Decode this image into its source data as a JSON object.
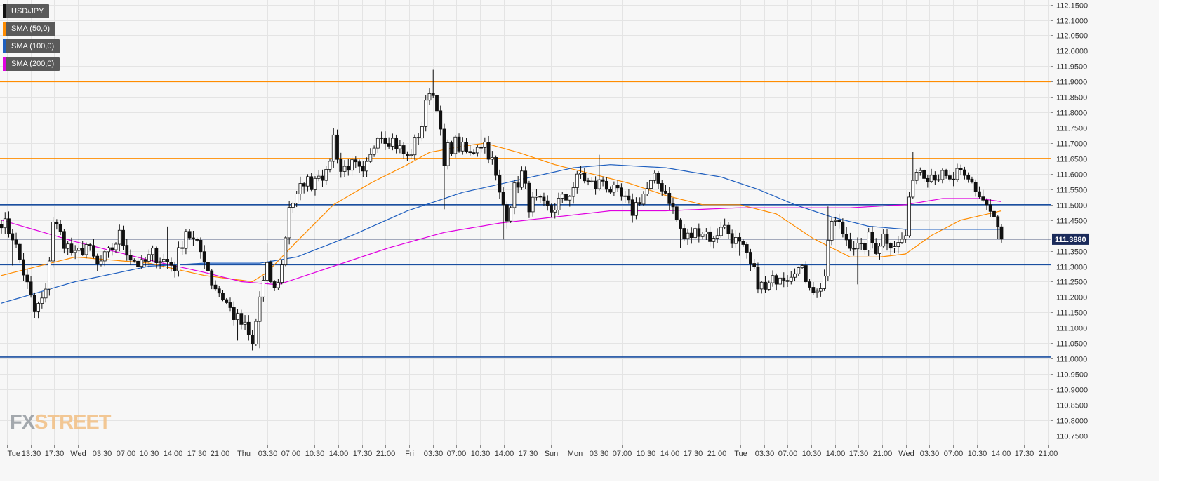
{
  "legend": [
    {
      "label": "USD/JPY",
      "color": "#111111"
    },
    {
      "label": "SMA (50,0)",
      "color": "#ff8c00"
    },
    {
      "label": "SMA (100,0)",
      "color": "#1f5fbf"
    },
    {
      "label": "SMA (200,0)",
      "color": "#e000e0"
    }
  ],
  "logo": {
    "fx": "FX",
    "street": "STREET"
  },
  "price_badge": "111.3880",
  "chart_data": {
    "type": "candlestick",
    "symbol": "USD/JPY",
    "ylim": [
      110.72,
      112.165
    ],
    "y_ticks": [
      "112.1500",
      "112.1000",
      "112.0500",
      "112.0000",
      "111.9500",
      "111.9000",
      "111.8500",
      "111.8000",
      "111.7500",
      "111.7000",
      "111.6500",
      "111.6000",
      "111.5500",
      "111.5000",
      "111.4500",
      "111.4000",
      "111.3500",
      "111.3000",
      "111.2500",
      "111.2000",
      "111.1500",
      "111.1000",
      "111.0500",
      "111.0000",
      "110.9500",
      "110.9000",
      "110.8500",
      "110.8000",
      "110.7500"
    ],
    "x_ticks": [
      "Tue",
      "13:30",
      "17:30",
      "Wed",
      "03:30",
      "07:00",
      "10:30",
      "14:00",
      "17:30",
      "21:00",
      "Thu",
      "03:30",
      "07:00",
      "10:30",
      "14:00",
      "17:30",
      "21:00",
      "Fri",
      "03:30",
      "07:00",
      "10:30",
      "14:00",
      "17:30",
      "Sun",
      "Mon",
      "03:30",
      "07:00",
      "10:30",
      "14:00",
      "17:30",
      "21:00",
      "Tue",
      "03:30",
      "07:00",
      "10:30",
      "14:00",
      "17:30",
      "21:00",
      "Wed",
      "03:30",
      "07:00",
      "10:30",
      "14:00",
      "17:30",
      "21:00"
    ],
    "horizontal_levels": [
      {
        "value": 111.9,
        "color": "#ff8c00"
      },
      {
        "value": 111.65,
        "color": "#ff8c00"
      },
      {
        "value": 111.5,
        "color": "#1a4fa0"
      },
      {
        "value": 111.305,
        "color": "#1a4fa0"
      },
      {
        "value": 111.005,
        "color": "#1a4fa0"
      }
    ],
    "last_price": 111.388,
    "close_anchors": [
      [
        0,
        111.45
      ],
      [
        3,
        111.4
      ],
      [
        6,
        111.28
      ],
      [
        9,
        111.15
      ],
      [
        12,
        111.21
      ],
      [
        14,
        111.45
      ],
      [
        17,
        111.38
      ],
      [
        20,
        111.33
      ],
      [
        23,
        111.37
      ],
      [
        26,
        111.3
      ],
      [
        29,
        111.34
      ],
      [
        32,
        111.4
      ],
      [
        35,
        111.33
      ],
      [
        38,
        111.3
      ],
      [
        41,
        111.34
      ],
      [
        44,
        111.32
      ],
      [
        47,
        111.3
      ],
      [
        50,
        111.42
      ],
      [
        52,
        111.38
      ],
      [
        55,
        111.33
      ],
      [
        57,
        111.25
      ],
      [
        60,
        111.2
      ],
      [
        63,
        111.14
      ],
      [
        66,
        111.1
      ],
      [
        68,
        111.04
      ],
      [
        70,
        111.2
      ],
      [
        72,
        111.29
      ],
      [
        74,
        111.22
      ],
      [
        76,
        111.3
      ],
      [
        78,
        111.5
      ],
      [
        80,
        111.52
      ],
      [
        82,
        111.58
      ],
      [
        84,
        111.57
      ],
      [
        86,
        111.61
      ],
      [
        88,
        111.59
      ],
      [
        90,
        111.72
      ],
      [
        92,
        111.61
      ],
      [
        94,
        111.63
      ],
      [
        96,
        111.62
      ],
      [
        98,
        111.59
      ],
      [
        100,
        111.65
      ],
      [
        102,
        111.74
      ],
      [
        104,
        111.72
      ],
      [
        106,
        111.71
      ],
      [
        108,
        111.68
      ],
      [
        110,
        111.65
      ],
      [
        112,
        111.7
      ],
      [
        114,
        111.76
      ],
      [
        116,
        111.88
      ],
      [
        118,
        111.83
      ],
      [
        120,
        111.62
      ],
      [
        121,
        111.68
      ],
      [
        123,
        111.7
      ],
      [
        125,
        111.68
      ],
      [
        127,
        111.66
      ],
      [
        129,
        111.7
      ],
      [
        131,
        111.7
      ],
      [
        133,
        111.64
      ],
      [
        135,
        111.53
      ],
      [
        137,
        111.47
      ],
      [
        139,
        111.55
      ],
      [
        141,
        111.6
      ],
      [
        143,
        111.5
      ],
      [
        145,
        111.51
      ],
      [
        147,
        111.49
      ],
      [
        149,
        111.48
      ],
      [
        151,
        111.51
      ],
      [
        153,
        111.52
      ],
      [
        155,
        111.56
      ],
      [
        157,
        111.6
      ],
      [
        159,
        111.57
      ],
      [
        161,
        111.56
      ],
      [
        163,
        111.58
      ],
      [
        165,
        111.55
      ],
      [
        167,
        111.53
      ],
      [
        169,
        111.51
      ],
      [
        171,
        111.48
      ],
      [
        173,
        111.52
      ],
      [
        175,
        111.55
      ],
      [
        177,
        111.58
      ],
      [
        179,
        111.56
      ],
      [
        181,
        111.52
      ],
      [
        183,
        111.45
      ],
      [
        185,
        111.39
      ],
      [
        187,
        111.4
      ],
      [
        189,
        111.42
      ],
      [
        191,
        111.41
      ],
      [
        193,
        111.38
      ],
      [
        195,
        111.44
      ],
      [
        197,
        111.41
      ],
      [
        199,
        111.38
      ],
      [
        201,
        111.35
      ],
      [
        203,
        111.3
      ],
      [
        205,
        111.25
      ],
      [
        207,
        111.22
      ],
      [
        209,
        111.25
      ],
      [
        211,
        111.28
      ],
      [
        213,
        111.27
      ],
      [
        215,
        111.3
      ],
      [
        217,
        111.28
      ],
      [
        219,
        111.25
      ],
      [
        221,
        111.21
      ],
      [
        223,
        111.27
      ],
      [
        225,
        111.45
      ],
      [
        227,
        111.43
      ],
      [
        229,
        111.39
      ],
      [
        231,
        111.37
      ],
      [
        233,
        111.35
      ],
      [
        235,
        111.39
      ],
      [
        237,
        111.36
      ],
      [
        239,
        111.4
      ],
      [
        241,
        111.38
      ],
      [
        243,
        111.37
      ],
      [
        245,
        111.4
      ],
      [
        247,
        111.6
      ],
      [
        249,
        111.62
      ],
      [
        251,
        111.6
      ],
      [
        253,
        111.6
      ],
      [
        255,
        111.59
      ],
      [
        257,
        111.57
      ],
      [
        259,
        111.6
      ],
      [
        261,
        111.58
      ],
      [
        263,
        111.57
      ],
      [
        265,
        111.53
      ],
      [
        267,
        111.5
      ],
      [
        269,
        111.45
      ],
      [
        270,
        111.42
      ],
      [
        271,
        111.388
      ]
    ],
    "sma50_anchors": [
      [
        0,
        111.27
      ],
      [
        20,
        111.33
      ],
      [
        40,
        111.31
      ],
      [
        55,
        111.27
      ],
      [
        68,
        111.25
      ],
      [
        72,
        111.28
      ],
      [
        80,
        111.38
      ],
      [
        90,
        111.5
      ],
      [
        100,
        111.57
      ],
      [
        110,
        111.63
      ],
      [
        116,
        111.67
      ],
      [
        125,
        111.69
      ],
      [
        131,
        111.7
      ],
      [
        140,
        111.67
      ],
      [
        150,
        111.63
      ],
      [
        160,
        111.6
      ],
      [
        170,
        111.57
      ],
      [
        180,
        111.53
      ],
      [
        190,
        111.5
      ],
      [
        200,
        111.5
      ],
      [
        210,
        111.47
      ],
      [
        220,
        111.39
      ],
      [
        230,
        111.33
      ],
      [
        238,
        111.33
      ],
      [
        245,
        111.34
      ],
      [
        252,
        111.4
      ],
      [
        260,
        111.45
      ],
      [
        271,
        111.48
      ]
    ],
    "sma100_anchors": [
      [
        0,
        111.18
      ],
      [
        20,
        111.25
      ],
      [
        40,
        111.3
      ],
      [
        55,
        111.31
      ],
      [
        70,
        111.31
      ],
      [
        80,
        111.33
      ],
      [
        95,
        111.4
      ],
      [
        110,
        111.48
      ],
      [
        125,
        111.54
      ],
      [
        140,
        111.58
      ],
      [
        155,
        111.62
      ],
      [
        165,
        111.63
      ],
      [
        180,
        111.62
      ],
      [
        195,
        111.59
      ],
      [
        205,
        111.55
      ],
      [
        215,
        111.5
      ],
      [
        225,
        111.46
      ],
      [
        235,
        111.43
      ],
      [
        245,
        111.42
      ],
      [
        255,
        111.42
      ],
      [
        271,
        111.42
      ]
    ],
    "sma200_anchors": [
      [
        0,
        111.45
      ],
      [
        20,
        111.38
      ],
      [
        40,
        111.32
      ],
      [
        55,
        111.28
      ],
      [
        65,
        111.25
      ],
      [
        75,
        111.24
      ],
      [
        90,
        111.3
      ],
      [
        105,
        111.36
      ],
      [
        120,
        111.41
      ],
      [
        135,
        111.44
      ],
      [
        150,
        111.46
      ],
      [
        165,
        111.48
      ],
      [
        180,
        111.48
      ],
      [
        200,
        111.49
      ],
      [
        215,
        111.49
      ],
      [
        230,
        111.49
      ],
      [
        245,
        111.5
      ],
      [
        255,
        111.52
      ],
      [
        265,
        111.52
      ],
      [
        271,
        111.51
      ]
    ],
    "spikes": [
      [
        3,
        -0.06
      ],
      [
        45,
        0.1
      ],
      [
        64,
        -0.05
      ],
      [
        70,
        -0.07
      ],
      [
        72,
        0.05
      ],
      [
        117,
        0.07
      ],
      [
        120,
        -0.13
      ],
      [
        130,
        0.05
      ],
      [
        136,
        -0.09
      ],
      [
        162,
        0.06
      ],
      [
        184,
        -0.04
      ],
      [
        200,
        -0.03
      ],
      [
        224,
        0.1
      ],
      [
        232,
        -0.1
      ],
      [
        247,
        0.08
      ],
      [
        270,
        -0.03
      ]
    ]
  }
}
